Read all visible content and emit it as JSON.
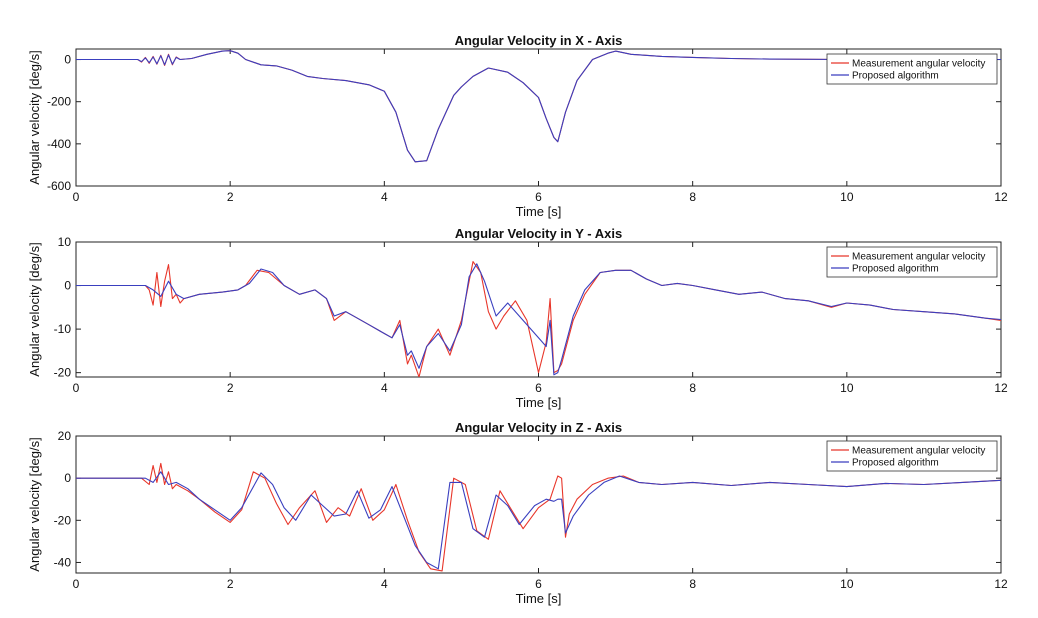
{
  "chart_data": [
    {
      "type": "line",
      "title": "Angular Velocity in X - Axis",
      "xlabel": "Time [s]",
      "ylabel": "Angular velocity [deg/s]",
      "xlim": [
        0,
        12
      ],
      "ylim": [
        -600,
        50
      ],
      "xticks": [
        0,
        2,
        4,
        6,
        8,
        10,
        12
      ],
      "yticks": [
        -600,
        -400,
        -200,
        0
      ],
      "grid": false,
      "legend_position": "top-right",
      "series": [
        {
          "name": "Measurement angular velocity",
          "color": "#e8362a",
          "x": [
            0,
            0.8,
            0.85,
            0.9,
            0.95,
            1.0,
            1.05,
            1.1,
            1.15,
            1.2,
            1.25,
            1.3,
            1.35,
            1.5,
            1.7,
            1.9,
            2.0,
            2.1,
            2.2,
            2.4,
            2.6,
            2.8,
            3.0,
            3.2,
            3.5,
            3.8,
            4.0,
            4.15,
            4.3,
            4.4,
            4.55,
            4.7,
            4.9,
            5.0,
            5.15,
            5.35,
            5.6,
            5.8,
            6.0,
            6.1,
            6.2,
            6.25,
            6.35,
            6.5,
            6.7,
            6.9,
            7.0,
            7.2,
            7.6,
            8.0,
            8.5,
            9.0,
            10.0,
            11.0,
            12.0
          ],
          "y": [
            0,
            0,
            -12,
            10,
            -18,
            15,
            -22,
            20,
            -28,
            25,
            -25,
            12,
            0,
            5,
            25,
            40,
            42,
            30,
            0,
            -25,
            -30,
            -50,
            -80,
            -90,
            -100,
            -120,
            -150,
            -250,
            -430,
            -485,
            -480,
            -330,
            -170,
            -130,
            -80,
            -40,
            -60,
            -110,
            -180,
            -280,
            -370,
            -390,
            -250,
            -100,
            0,
            30,
            40,
            25,
            15,
            10,
            5,
            2,
            0,
            0,
            0
          ]
        },
        {
          "name": "Proposed algorithm",
          "color": "#3a3fbf",
          "x": [
            0,
            0.8,
            0.85,
            0.9,
            0.95,
            1.0,
            1.05,
            1.1,
            1.15,
            1.2,
            1.25,
            1.3,
            1.35,
            1.5,
            1.7,
            1.9,
            2.0,
            2.1,
            2.2,
            2.4,
            2.6,
            2.8,
            3.0,
            3.2,
            3.5,
            3.8,
            4.0,
            4.15,
            4.3,
            4.4,
            4.55,
            4.7,
            4.9,
            5.0,
            5.15,
            5.35,
            5.6,
            5.8,
            6.0,
            6.1,
            6.2,
            6.25,
            6.35,
            6.5,
            6.7,
            6.9,
            7.0,
            7.2,
            7.6,
            8.0,
            8.5,
            9.0,
            10.0,
            11.0,
            12.0
          ],
          "y": [
            0,
            0,
            -10,
            8,
            -15,
            12,
            -20,
            18,
            -25,
            22,
            -22,
            10,
            0,
            5,
            25,
            40,
            42,
            30,
            0,
            -25,
            -30,
            -50,
            -80,
            -90,
            -100,
            -120,
            -150,
            -250,
            -430,
            -485,
            -480,
            -330,
            -170,
            -130,
            -80,
            -40,
            -60,
            -110,
            -180,
            -280,
            -370,
            -390,
            -250,
            -100,
            0,
            30,
            40,
            25,
            15,
            10,
            5,
            2,
            0,
            0,
            0
          ]
        }
      ]
    },
    {
      "type": "line",
      "title": "Angular Velocity in Y - Axis",
      "xlabel": "Time [s]",
      "ylabel": "Angular velocity [deg/s]",
      "xlim": [
        0,
        12
      ],
      "ylim": [
        -21,
        10
      ],
      "xticks": [
        0,
        2,
        4,
        6,
        8,
        10,
        12
      ],
      "yticks": [
        -20,
        -10,
        0,
        10
      ],
      "grid": false,
      "legend_position": "top-right",
      "series": [
        {
          "name": "Measurement angular velocity",
          "color": "#e8362a",
          "x": [
            0,
            0.9,
            0.95,
            1.0,
            1.05,
            1.1,
            1.15,
            1.2,
            1.25,
            1.3,
            1.35,
            1.4,
            1.6,
            1.9,
            2.1,
            2.2,
            2.35,
            2.5,
            2.7,
            2.9,
            3.1,
            3.25,
            3.35,
            3.5,
            3.65,
            3.8,
            4.0,
            4.1,
            4.2,
            4.3,
            4.35,
            4.45,
            4.55,
            4.7,
            4.85,
            5.0,
            5.15,
            5.25,
            5.35,
            5.45,
            5.55,
            5.7,
            5.85,
            6.0,
            6.1,
            6.15,
            6.2,
            6.25,
            6.3,
            6.45,
            6.6,
            6.8,
            7.0,
            7.2,
            7.4,
            7.6,
            7.8,
            8.0,
            8.3,
            8.6,
            8.9,
            9.2,
            9.5,
            9.8,
            10.0,
            10.3,
            10.6,
            11.0,
            11.4,
            11.8,
            12.0
          ],
          "y": [
            0,
            0,
            -1,
            -4.5,
            3,
            -4.8,
            1,
            4.8,
            -3,
            -2,
            -4,
            -3,
            -2,
            -1.5,
            -1,
            0,
            3.5,
            3,
            0,
            -2,
            -1,
            -3,
            -8,
            -6,
            -7.5,
            -9,
            -11,
            -12,
            -8,
            -18,
            -16,
            -21,
            -14,
            -10,
            -16,
            -8,
            5.5,
            3,
            -6,
            -10,
            -7,
            -3.5,
            -8,
            -20,
            -13,
            -3,
            -20,
            -19.5,
            -18,
            -8,
            -2,
            3,
            3.5,
            3.5,
            1.5,
            0,
            0.5,
            0,
            -1,
            -2,
            -1.5,
            -3,
            -3.5,
            -5,
            -4,
            -4.5,
            -5.5,
            -6,
            -6.5,
            -7.5,
            -8
          ]
        },
        {
          "name": "Proposed algorithm",
          "color": "#3a3fbf",
          "x": [
            0,
            0.9,
            1.0,
            1.1,
            1.2,
            1.3,
            1.4,
            1.6,
            1.9,
            2.1,
            2.25,
            2.4,
            2.55,
            2.7,
            2.9,
            3.1,
            3.25,
            3.35,
            3.5,
            3.65,
            3.8,
            4.0,
            4.1,
            4.2,
            4.3,
            4.35,
            4.45,
            4.55,
            4.7,
            4.85,
            5.0,
            5.1,
            5.2,
            5.3,
            5.45,
            5.6,
            5.8,
            6.0,
            6.1,
            6.15,
            6.2,
            6.25,
            6.3,
            6.45,
            6.6,
            6.8,
            7.0,
            7.2,
            7.4,
            7.6,
            7.8,
            8.0,
            8.3,
            8.6,
            8.9,
            9.2,
            9.5,
            9.8,
            10.0,
            10.3,
            10.6,
            11.0,
            11.4,
            11.8,
            12.0
          ],
          "y": [
            0,
            0,
            -1,
            -2.5,
            1,
            -2,
            -3,
            -2,
            -1.5,
            -1,
            0.5,
            3.8,
            3,
            0,
            -2,
            -1,
            -3,
            -7,
            -6,
            -7.5,
            -9,
            -11,
            -12,
            -9,
            -16,
            -15,
            -19,
            -14,
            -11,
            -15,
            -9,
            2,
            5,
            1,
            -7,
            -4,
            -8,
            -12,
            -14,
            -8,
            -20.5,
            -20,
            -17,
            -7,
            -1,
            3,
            3.5,
            3.5,
            1.5,
            0,
            0.5,
            0,
            -1,
            -2,
            -1.5,
            -3,
            -3.5,
            -4.8,
            -4,
            -4.5,
            -5.5,
            -6,
            -6.5,
            -7.5,
            -7.8
          ]
        }
      ]
    },
    {
      "type": "line",
      "title": "Angular Velocity in Z - Axis",
      "xlabel": "Time [s]",
      "ylabel": "Angular velocity [deg/s]",
      "xlim": [
        0,
        12
      ],
      "ylim": [
        -45,
        20
      ],
      "xticks": [
        0,
        2,
        4,
        6,
        8,
        10,
        12
      ],
      "yticks": [
        -40,
        -20,
        0,
        20
      ],
      "grid": false,
      "legend_position": "top-right",
      "series": [
        {
          "name": "Measurement angular velocity",
          "color": "#e8362a",
          "x": [
            0,
            0.85,
            0.95,
            1.0,
            1.05,
            1.1,
            1.15,
            1.2,
            1.25,
            1.3,
            1.45,
            1.6,
            1.8,
            2.0,
            2.15,
            2.3,
            2.45,
            2.6,
            2.75,
            2.9,
            3.1,
            3.25,
            3.4,
            3.55,
            3.7,
            3.85,
            4.0,
            4.15,
            4.3,
            4.45,
            4.6,
            4.75,
            4.9,
            5.05,
            5.2,
            5.35,
            5.5,
            5.65,
            5.8,
            6.0,
            6.15,
            6.25,
            6.3,
            6.35,
            6.4,
            6.5,
            6.7,
            6.9,
            7.1,
            7.3,
            7.6,
            8.0,
            8.5,
            9.0,
            9.5,
            10.0,
            10.5,
            11.0,
            11.5,
            12.0
          ],
          "y": [
            0,
            0,
            -3,
            6,
            -2,
            7,
            -3,
            3,
            -5,
            -3,
            -6,
            -10,
            -16,
            -21,
            -15,
            3,
            0,
            -12,
            -22,
            -14,
            -6,
            -21,
            -14,
            -18,
            -5,
            -20,
            -15,
            -3,
            -20,
            -35,
            -43,
            -44,
            0,
            -3,
            -25,
            -29,
            -6,
            -15,
            -24,
            -14,
            -10,
            1,
            0,
            -28,
            -17,
            -10,
            -3,
            0,
            1,
            -2,
            -3,
            -2,
            -3.5,
            -2,
            -3,
            -4,
            -2.5,
            -3,
            -2,
            -1
          ]
        },
        {
          "name": "Proposed algorithm",
          "color": "#3a3fbf",
          "x": [
            0,
            0.9,
            1.0,
            1.1,
            1.2,
            1.3,
            1.45,
            1.6,
            1.8,
            2.0,
            2.15,
            2.4,
            2.55,
            2.7,
            2.85,
            3.05,
            3.2,
            3.35,
            3.5,
            3.65,
            3.8,
            3.95,
            4.1,
            4.25,
            4.4,
            4.55,
            4.7,
            4.85,
            5.0,
            5.15,
            5.3,
            5.45,
            5.6,
            5.75,
            5.95,
            6.1,
            6.2,
            6.25,
            6.3,
            6.35,
            6.45,
            6.65,
            6.85,
            7.05,
            7.3,
            7.6,
            8.0,
            8.5,
            9.0,
            9.5,
            10.0,
            10.5,
            11.0,
            11.5,
            12.0
          ],
          "y": [
            0,
            0,
            -2,
            3,
            -3,
            -2,
            -5,
            -10,
            -15,
            -20,
            -14,
            2.5,
            -3,
            -14,
            -20,
            -8,
            -13,
            -18,
            -17,
            -6,
            -19,
            -15,
            -4,
            -18,
            -32,
            -40,
            -43,
            -2,
            -2,
            -24,
            -28,
            -8,
            -13,
            -22,
            -13,
            -10,
            -11,
            -10,
            -10,
            -26,
            -18,
            -8,
            -2,
            1,
            -2,
            -3,
            -2,
            -3.5,
            -2,
            -3,
            -4,
            -2.5,
            -3,
            -2,
            -1
          ]
        }
      ]
    }
  ]
}
